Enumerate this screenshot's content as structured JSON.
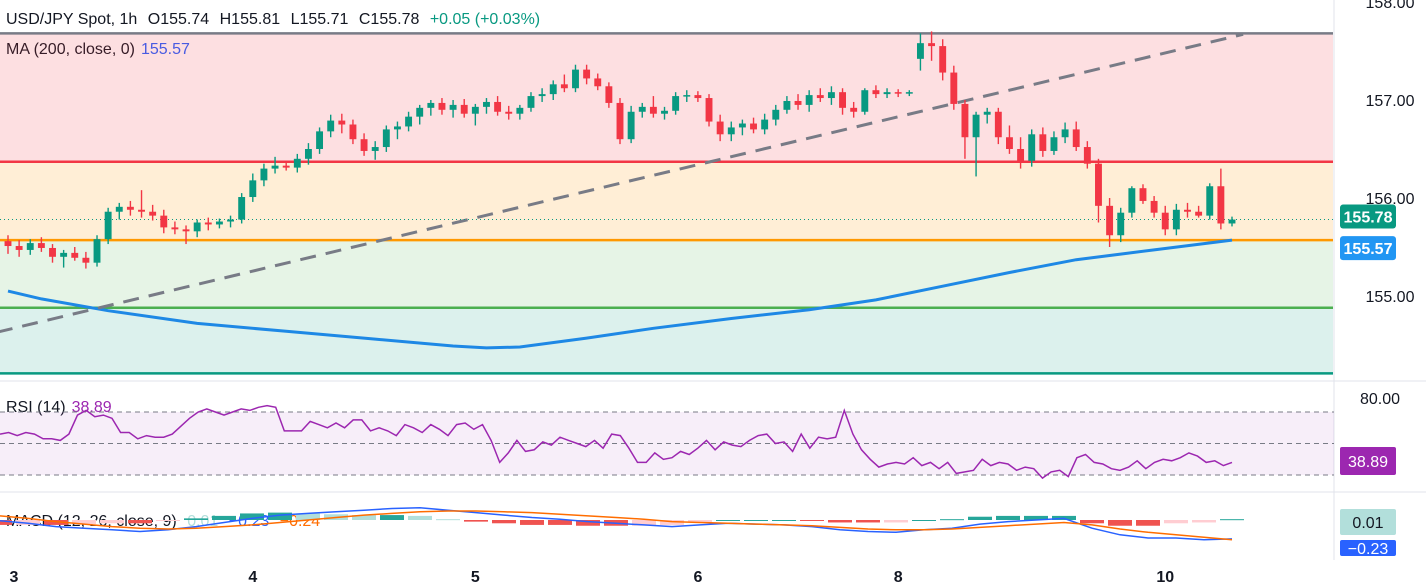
{
  "header": {
    "symbol": "USD/JPY Spot, 1h",
    "open": "O155.74",
    "high": "H155.81",
    "low": "L155.71",
    "close": "C155.78",
    "change": "+0.05 (+0.03%)"
  },
  "ma": {
    "label": "MA (200, close, 0)",
    "value": "155.57"
  },
  "rsi": {
    "label": "RSI (14)",
    "value": "38.89"
  },
  "macd": {
    "label": "MACD (12, 26, close, 9)",
    "hist": "0.01",
    "macd": "−0.23",
    "signal": "−0.24"
  },
  "price_badges": {
    "last": "155.78",
    "ma": "155.57"
  },
  "rsi_badges": {
    "level": "80.00",
    "value": "38.89"
  },
  "macd_badges": {
    "hist": "0.01",
    "macd": "−0.23"
  },
  "colors": {
    "up": "#089981",
    "down": "#f23645",
    "ma": "#1e88e5",
    "rsi": "#9c27b0",
    "macd": "#2962ff",
    "signal": "#ff6d00",
    "trend": "#787b86"
  },
  "chart_data": {
    "type": "candlestick",
    "y_ticks": [
      "158.00",
      "157.00",
      "156.00",
      "155.00"
    ],
    "ylim": [
      154.2,
      158.0
    ],
    "x_labels": [
      {
        "label": "3",
        "index": 0
      },
      {
        "label": "4",
        "index": 22
      },
      {
        "label": "5",
        "index": 42
      },
      {
        "label": "6",
        "index": 62
      },
      {
        "label": "8",
        "index": 80
      },
      {
        "label": "10",
        "index": 104
      }
    ],
    "fib_levels": [
      157.68,
      156.37,
      155.57,
      154.88,
      154.21
    ],
    "horizontal_lines": [
      {
        "value": 157.68,
        "color": "#787b86"
      },
      {
        "value": 156.37,
        "color": "#f23645"
      },
      {
        "value": 155.57,
        "color": "#ff9800"
      },
      {
        "value": 154.88,
        "color": "#4caf50"
      },
      {
        "value": 154.21,
        "color": "#089981"
      }
    ],
    "trendline": {
      "from": {
        "index": -1,
        "value": 154.63
      },
      "to": {
        "index": 111,
        "value": 157.67
      }
    },
    "ohlc": [
      [
        155.56,
        155.62,
        155.43,
        155.51
      ],
      [
        155.51,
        155.57,
        155.4,
        155.47
      ],
      [
        155.47,
        155.58,
        155.42,
        155.54
      ],
      [
        155.54,
        155.6,
        155.45,
        155.49
      ],
      [
        155.49,
        155.53,
        155.34,
        155.4
      ],
      [
        155.4,
        155.47,
        155.29,
        155.44
      ],
      [
        155.44,
        155.5,
        155.36,
        155.39
      ],
      [
        155.39,
        155.45,
        155.28,
        155.34
      ],
      [
        155.34,
        155.62,
        155.3,
        155.58
      ],
      [
        155.58,
        155.9,
        155.53,
        155.86
      ],
      [
        155.86,
        155.95,
        155.78,
        155.91
      ],
      [
        155.91,
        155.97,
        155.82,
        155.88
      ],
      [
        155.88,
        156.08,
        155.8,
        155.86
      ],
      [
        155.86,
        155.93,
        155.77,
        155.82
      ],
      [
        155.82,
        155.88,
        155.64,
        155.7
      ],
      [
        155.7,
        155.76,
        155.63,
        155.68
      ],
      [
        155.68,
        155.72,
        155.53,
        155.66
      ],
      [
        155.66,
        155.78,
        155.6,
        155.75
      ],
      [
        155.75,
        155.8,
        155.67,
        155.73
      ],
      [
        155.73,
        155.79,
        155.69,
        155.76
      ],
      [
        155.76,
        155.82,
        155.7,
        155.78
      ],
      [
        155.78,
        156.05,
        155.74,
        156.01
      ],
      [
        156.01,
        156.25,
        155.96,
        156.18
      ],
      [
        156.18,
        156.35,
        156.12,
        156.3
      ],
      [
        156.3,
        156.42,
        156.25,
        156.33
      ],
      [
        156.33,
        156.38,
        156.28,
        156.31
      ],
      [
        156.31,
        156.45,
        156.26,
        156.4
      ],
      [
        156.4,
        156.56,
        156.34,
        156.5
      ],
      [
        156.5,
        156.72,
        156.45,
        156.68
      ],
      [
        156.68,
        156.85,
        156.62,
        156.79
      ],
      [
        156.79,
        156.86,
        156.66,
        156.75
      ],
      [
        156.75,
        156.8,
        156.55,
        156.6
      ],
      [
        156.6,
        156.66,
        156.43,
        156.48
      ],
      [
        156.48,
        156.58,
        156.39,
        156.52
      ],
      [
        156.52,
        156.74,
        156.47,
        156.7
      ],
      [
        156.7,
        156.78,
        156.6,
        156.73
      ],
      [
        156.73,
        156.88,
        156.68,
        156.83
      ],
      [
        156.83,
        156.95,
        156.75,
        156.92
      ],
      [
        156.92,
        157.0,
        156.84,
        156.97
      ],
      [
        156.97,
        157.02,
        156.85,
        156.9
      ],
      [
        156.9,
        157.0,
        156.82,
        156.95
      ],
      [
        156.95,
        157.01,
        156.82,
        156.86
      ],
      [
        156.86,
        156.96,
        156.74,
        156.93
      ],
      [
        156.93,
        157.02,
        156.86,
        156.98
      ],
      [
        156.98,
        157.04,
        156.84,
        156.88
      ],
      [
        156.88,
        156.94,
        156.8,
        156.86
      ],
      [
        156.86,
        156.95,
        156.8,
        156.92
      ],
      [
        156.92,
        157.08,
        156.88,
        157.04
      ],
      [
        157.04,
        157.12,
        156.98,
        157.06
      ],
      [
        157.06,
        157.2,
        157.0,
        157.16
      ],
      [
        157.16,
        157.26,
        157.08,
        157.12
      ],
      [
        157.12,
        157.36,
        157.08,
        157.31
      ],
      [
        157.31,
        157.36,
        157.16,
        157.22
      ],
      [
        157.22,
        157.27,
        157.1,
        157.14
      ],
      [
        157.14,
        157.18,
        156.92,
        156.97
      ],
      [
        156.97,
        157.02,
        156.55,
        156.6
      ],
      [
        156.6,
        156.94,
        156.56,
        156.88
      ],
      [
        156.88,
        156.97,
        156.82,
        156.93
      ],
      [
        156.93,
        157.04,
        156.82,
        156.86
      ],
      [
        156.86,
        156.93,
        156.8,
        156.89
      ],
      [
        156.89,
        157.08,
        156.85,
        157.04
      ],
      [
        157.04,
        157.1,
        156.98,
        157.05
      ],
      [
        157.05,
        157.09,
        156.98,
        157.02
      ],
      [
        157.02,
        157.06,
        156.73,
        156.78
      ],
      [
        156.78,
        156.85,
        156.58,
        156.65
      ],
      [
        156.65,
        156.78,
        156.58,
        156.72
      ],
      [
        156.72,
        156.8,
        156.64,
        156.76
      ],
      [
        156.76,
        156.82,
        156.66,
        156.7
      ],
      [
        156.7,
        156.86,
        156.65,
        156.8
      ],
      [
        156.8,
        156.95,
        156.74,
        156.9
      ],
      [
        156.9,
        157.04,
        156.86,
        156.99
      ],
      [
        156.99,
        157.06,
        156.9,
        156.95
      ],
      [
        156.95,
        157.1,
        156.88,
        157.05
      ],
      [
        157.05,
        157.12,
        156.98,
        157.02
      ],
      [
        157.02,
        157.14,
        156.95,
        157.08
      ],
      [
        157.08,
        157.12,
        156.85,
        156.92
      ],
      [
        156.92,
        156.98,
        156.82,
        156.88
      ],
      [
        156.88,
        157.12,
        156.85,
        157.1
      ],
      [
        157.1,
        157.15,
        157.02,
        157.06
      ],
      [
        157.06,
        157.12,
        157.02,
        157.08
      ],
      [
        157.08,
        157.11,
        157.03,
        157.07
      ],
      [
        157.07,
        157.1,
        157.04,
        157.08
      ],
      [
        157.42,
        157.68,
        157.3,
        157.58
      ],
      [
        157.58,
        157.7,
        157.4,
        157.55
      ],
      [
        157.55,
        157.62,
        157.2,
        157.28
      ],
      [
        157.28,
        157.35,
        156.9,
        156.96
      ],
      [
        156.96,
        157.0,
        156.4,
        156.62
      ],
      [
        156.62,
        156.88,
        156.22,
        156.85
      ],
      [
        156.85,
        156.92,
        156.76,
        156.88
      ],
      [
        156.88,
        156.92,
        156.55,
        156.62
      ],
      [
        156.62,
        156.74,
        156.45,
        156.5
      ],
      [
        156.5,
        156.62,
        156.3,
        156.38
      ],
      [
        156.38,
        156.7,
        156.32,
        156.65
      ],
      [
        156.65,
        156.72,
        156.42,
        156.48
      ],
      [
        156.48,
        156.68,
        156.44,
        156.62
      ],
      [
        156.62,
        156.77,
        156.56,
        156.7
      ],
      [
        156.7,
        156.78,
        156.48,
        156.52
      ],
      [
        156.52,
        156.58,
        156.3,
        156.35
      ],
      [
        156.35,
        156.4,
        155.75,
        155.92
      ],
      [
        155.92,
        156.0,
        155.5,
        155.62
      ],
      [
        155.62,
        155.9,
        155.55,
        155.85
      ],
      [
        155.85,
        156.12,
        155.8,
        156.1
      ],
      [
        156.1,
        156.14,
        155.94,
        155.97
      ],
      [
        155.97,
        156.02,
        155.8,
        155.85
      ],
      [
        155.85,
        155.92,
        155.62,
        155.68
      ],
      [
        155.68,
        155.94,
        155.62,
        155.88
      ],
      [
        155.88,
        155.95,
        155.8,
        155.86
      ],
      [
        155.86,
        155.92,
        155.8,
        155.82
      ],
      [
        155.82,
        156.15,
        155.78,
        156.12
      ],
      [
        156.12,
        156.3,
        155.68,
        155.74
      ],
      [
        155.74,
        155.81,
        155.71,
        155.78
      ]
    ],
    "ma200": [
      [
        0,
        155.05
      ],
      [
        3,
        154.97
      ],
      [
        9,
        154.85
      ],
      [
        17,
        154.72
      ],
      [
        25,
        154.64
      ],
      [
        33,
        154.56
      ],
      [
        40,
        154.49
      ],
      [
        43,
        154.47
      ],
      [
        46,
        154.48
      ],
      [
        52,
        154.57
      ],
      [
        58,
        154.67
      ],
      [
        65,
        154.77
      ],
      [
        72,
        154.86
      ],
      [
        78,
        154.96
      ],
      [
        84,
        155.1
      ],
      [
        90,
        155.24
      ],
      [
        96,
        155.37
      ],
      [
        103,
        155.47
      ],
      [
        110,
        155.57
      ]
    ],
    "rsi": {
      "label": "RSI (14)",
      "upper": 70,
      "mid": 50,
      "lower": 30,
      "tick": "80.00",
      "values": [
        56,
        57,
        55,
        57,
        56,
        53,
        53,
        52,
        56,
        68,
        71,
        67,
        68,
        66,
        57,
        57,
        53,
        55,
        54,
        54,
        56,
        61,
        66,
        70,
        72,
        70,
        68,
        70,
        72,
        71,
        73,
        74,
        73,
        58,
        58,
        58,
        64,
        62,
        60,
        63,
        60,
        65,
        65,
        58,
        60,
        58,
        55,
        62,
        60,
        57,
        62,
        59,
        55,
        62,
        63,
        59,
        62,
        52,
        38,
        44,
        52,
        45,
        46,
        51,
        49,
        54,
        52,
        50,
        48,
        52,
        47,
        56,
        55,
        47,
        38,
        38,
        44,
        40,
        41,
        45,
        43,
        47,
        52,
        46,
        51,
        49,
        48,
        52,
        55,
        56,
        50,
        51,
        45,
        56,
        47,
        54,
        53,
        54,
        71,
        56,
        46,
        40,
        35,
        37,
        38,
        37,
        41,
        36,
        38,
        34,
        38,
        31,
        32,
        33,
        40,
        36,
        38,
        37,
        33,
        35,
        34,
        28,
        32,
        33,
        29,
        41,
        43,
        38,
        37,
        34,
        33,
        35,
        39,
        34,
        38,
        40,
        39,
        41,
        44,
        42,
        38,
        39,
        36,
        38
      ]
    },
    "macd": {
      "label": "MACD (12, 26, close, 9)",
      "macd_line": [
        -0.01,
        -0.04,
        -0.08,
        -0.1,
        -0.12,
        -0.14,
        -0.12,
        -0.08,
        -0.03,
        0.02,
        0.06,
        0.08,
        0.1,
        0.12,
        0.14,
        0.15,
        0.12,
        0.09,
        0.06,
        0.03,
        0.01,
        -0.02,
        -0.04,
        -0.06,
        -0.08,
        -0.06,
        -0.04,
        -0.05,
        -0.06,
        -0.08,
        -0.12,
        -0.14,
        -0.15,
        -0.12,
        -0.1,
        -0.05,
        -0.02,
        0.0,
        0.02,
        -0.1,
        -0.18,
        -0.22,
        -0.22,
        -0.24,
        -0.23
      ],
      "signal_line": [
        0.05,
        0.02,
        -0.02,
        -0.05,
        -0.08,
        -0.1,
        -0.11,
        -0.1,
        -0.08,
        -0.06,
        -0.03,
        0.0,
        0.03,
        0.06,
        0.08,
        0.1,
        0.11,
        0.11,
        0.1,
        0.09,
        0.07,
        0.05,
        0.03,
        0.01,
        -0.02,
        -0.03,
        -0.04,
        -0.05,
        -0.06,
        -0.07,
        -0.09,
        -0.11,
        -0.12,
        -0.12,
        -0.11,
        -0.09,
        -0.07,
        -0.05,
        -0.03,
        -0.06,
        -0.11,
        -0.15,
        -0.18,
        -0.21,
        -0.24
      ],
      "hist_labels": [
        "0.01"
      ]
    }
  }
}
